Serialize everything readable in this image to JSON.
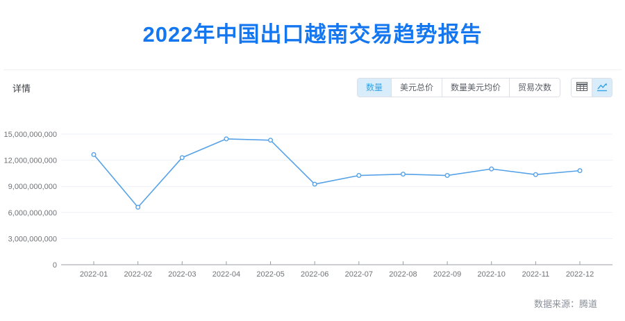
{
  "page": {
    "title": "2022年中国出口越南交易趋势报告"
  },
  "colors": {
    "title-blue": "#1477f0",
    "accent": "#36a3e7",
    "accent-light": "#d8ecfa",
    "line-blue": "#56a2e8"
  },
  "toolbar": {
    "section_label": "详情",
    "tabs": [
      {
        "label": "数量",
        "active": true
      },
      {
        "label": "美元总价",
        "active": false
      },
      {
        "label": "数量美元均价",
        "active": false
      },
      {
        "label": "贸易次数",
        "active": false
      }
    ],
    "view_buttons": [
      {
        "name": "table-view",
        "active": false
      },
      {
        "name": "chart-view",
        "active": true
      }
    ]
  },
  "footer": {
    "source_label": "数据来源：腾道"
  },
  "chart_data": {
    "type": "line",
    "title": "",
    "xlabel": "",
    "ylabel": "",
    "categories": [
      "2022-01",
      "2022-02",
      "2022-03",
      "2022-04",
      "2022-05",
      "2022-06",
      "2022-07",
      "2022-08",
      "2022-09",
      "2022-10",
      "2022-11",
      "2022-12"
    ],
    "values": [
      12650000000,
      6600000000,
      12300000000,
      14450000000,
      14300000000,
      9250000000,
      10250000000,
      10400000000,
      10250000000,
      11000000000,
      10350000000,
      10800000000
    ],
    "ylim": [
      0,
      15000000000
    ],
    "yticks": [
      0,
      3000000000,
      6000000000,
      9000000000,
      12000000000,
      15000000000
    ],
    "grid": true,
    "legend": false,
    "line_color": "#56a2e8",
    "marker": "hollow-circle",
    "grid_color": "#edf1f7",
    "axis_color": "#9a9da3",
    "label_color": "#6f7277"
  }
}
